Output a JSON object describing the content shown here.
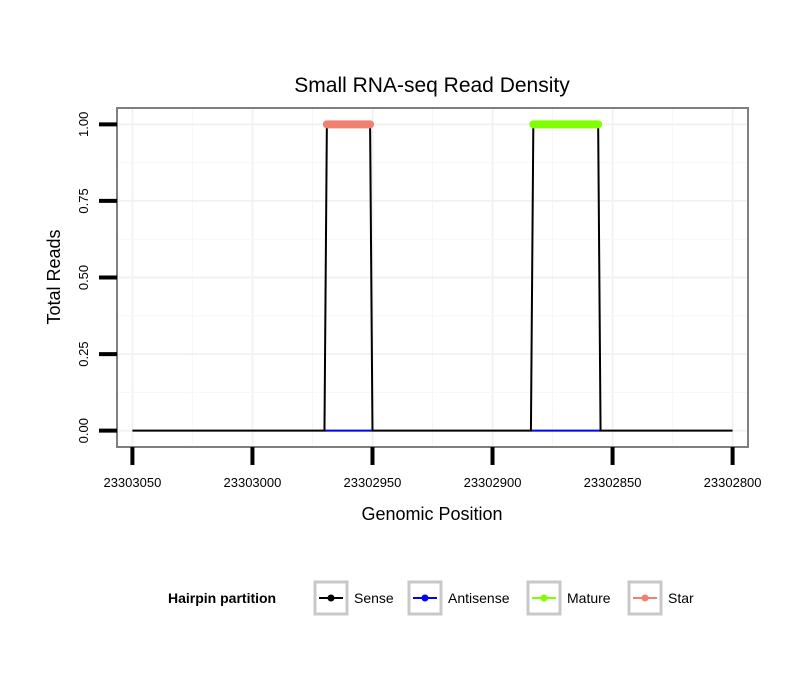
{
  "chart_data": {
    "type": "line",
    "title": "Small RNA-seq Read Density",
    "xlabel": "Genomic Position",
    "ylabel": "Total Reads",
    "x_reversed": true,
    "xlim": [
      23303056,
      23302794
    ],
    "ylim": [
      -0.05,
      1.05
    ],
    "x_ticks": [
      23303050,
      23303000,
      23302950,
      23302900,
      23302850,
      23302800
    ],
    "x_tick_labels": [
      "23303050",
      "23303000",
      "23302950",
      "23302900",
      "23302850",
      "23302800"
    ],
    "y_ticks": [
      0,
      0.25,
      0.5,
      0.75,
      1.0
    ],
    "y_tick_labels": [
      "0.00",
      "0.25",
      "0.50",
      "0.75",
      "1.00"
    ],
    "grid": true,
    "legend": {
      "title": "Hairpin partition",
      "position": "bottom",
      "entries": [
        {
          "label": "Sense",
          "color": "#000000"
        },
        {
          "label": "Antisense",
          "color": "#0000ff"
        },
        {
          "label": "Mature",
          "color": "#7fff00"
        },
        {
          "label": "Star",
          "color": "#f08070"
        }
      ]
    },
    "series": [
      {
        "name": "Sense",
        "color": "#000000",
        "x": [
          23303050,
          23302970,
          23302969,
          23302951,
          23302950,
          23302884,
          23302883,
          23302856,
          23302855,
          23302800
        ],
        "y": [
          0,
          0,
          1,
          1,
          0,
          0,
          1,
          1,
          0,
          0
        ]
      },
      {
        "name": "Antisense",
        "color": "#0000ff",
        "x": [
          23302970,
          23302950,
          23302884,
          23302855
        ],
        "y": [
          0,
          0,
          0,
          0
        ],
        "segments": [
          [
            0,
            1
          ],
          [
            2,
            3
          ]
        ]
      },
      {
        "name": "Mature",
        "color": "#7fff00",
        "x": [
          23302883,
          23302856
        ],
        "y": [
          1,
          1
        ]
      },
      {
        "name": "Star",
        "color": "#f08070",
        "x": [
          23302969,
          23302951
        ],
        "y": [
          1,
          1
        ]
      }
    ]
  }
}
